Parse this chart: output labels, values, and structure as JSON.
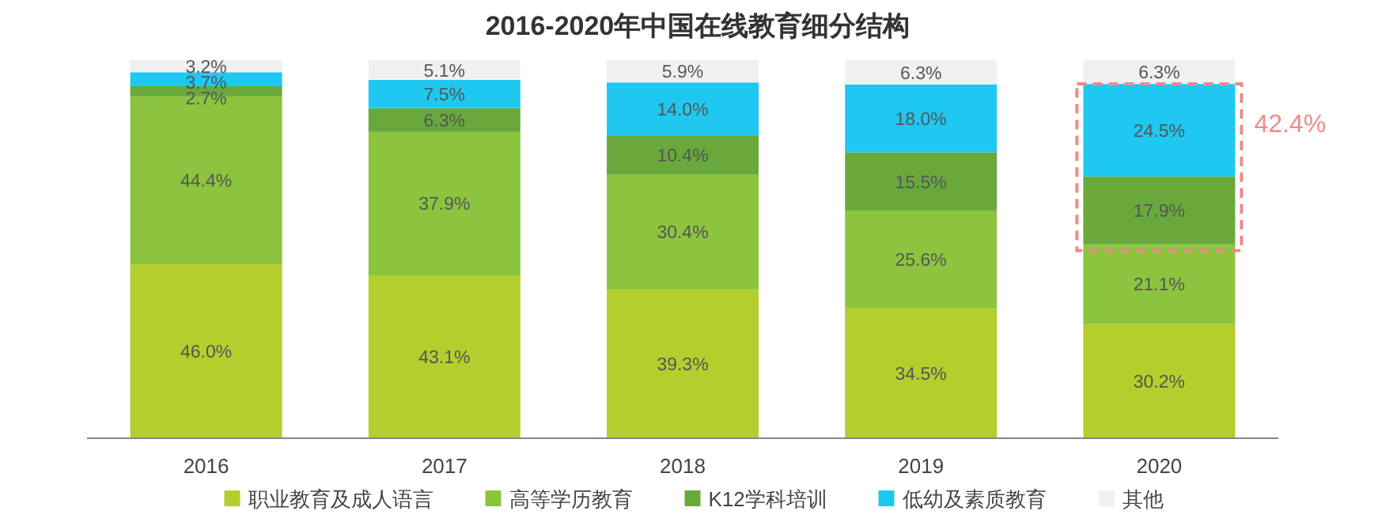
{
  "chart_data": {
    "type": "bar",
    "stacked": true,
    "title": "2016-2020年中国在线教育细分结构",
    "categories": [
      "2016",
      "2017",
      "2018",
      "2019",
      "2020"
    ],
    "series": [
      {
        "name": "职业教育及成人语言",
        "color": "#b3cf2e",
        "values": [
          46.0,
          43.1,
          39.3,
          34.5,
          30.2
        ],
        "value_labels": [
          "46.0%",
          "43.1%",
          "39.3%",
          "34.5%",
          "30.2%"
        ]
      },
      {
        "name": "高等学历教育",
        "color": "#8cc43f",
        "values": [
          44.4,
          37.9,
          30.4,
          25.6,
          21.1
        ],
        "value_labels": [
          "44.4%",
          "37.9%",
          "30.4%",
          "25.6%",
          "21.1%"
        ]
      },
      {
        "name": "K12学科培训",
        "color": "#69a93c",
        "values": [
          2.7,
          6.3,
          10.4,
          15.5,
          17.9
        ],
        "value_labels": [
          "2.7%",
          "6.3%",
          "10.4%",
          "15.5%",
          "17.9%"
        ]
      },
      {
        "name": "低幼及素质教育",
        "color": "#1fc8f1",
        "values": [
          3.7,
          7.5,
          14.0,
          18.0,
          24.5
        ],
        "value_labels": [
          "3.7%",
          "7.5%",
          "14.0%",
          "18.0%",
          "24.5%"
        ]
      },
      {
        "name": "其他",
        "color": "#f0f0f0",
        "values": [
          3.2,
          5.1,
          5.9,
          6.3,
          6.3
        ],
        "value_labels": [
          "3.2%",
          "5.1%",
          "5.9%",
          "6.3%",
          "6.3%"
        ]
      }
    ],
    "legend": "bottom",
    "annotations": [
      "42.4%"
    ]
  }
}
